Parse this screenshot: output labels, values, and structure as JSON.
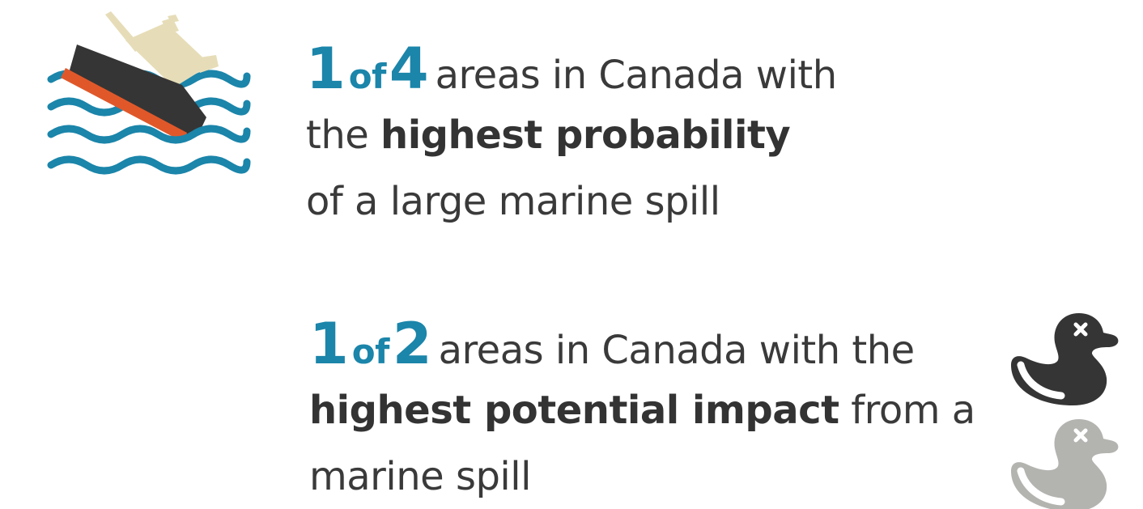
{
  "colors": {
    "accent_blue": "#1b85aa",
    "text_dark": "#3a3a3a",
    "ship_hull": "#353535",
    "ship_stripe": "#e0582a",
    "ship_cabin": "#e6ddb8",
    "duck_dark": "#353535",
    "duck_light": "#b3b3b0"
  },
  "icons": {
    "sinking_ship": "sinking-ship-icon",
    "dead_duck_dark": "dead-duck-icon",
    "dead_duck_light": "dead-duck-icon"
  },
  "stat1": {
    "numerator": "1",
    "of": "of",
    "denominator": "4",
    "line1_rest": "areas in Canada with",
    "line2_prefix": "the ",
    "line2_bold": "highest probability",
    "line3": "of a large marine spill"
  },
  "stat2": {
    "numerator": "1",
    "of": "of",
    "denominator": "2",
    "line1_rest": "areas in Canada with the",
    "line2_bold": "highest potential impact",
    "line2_suffix": " from a",
    "line3": "marine spill"
  }
}
